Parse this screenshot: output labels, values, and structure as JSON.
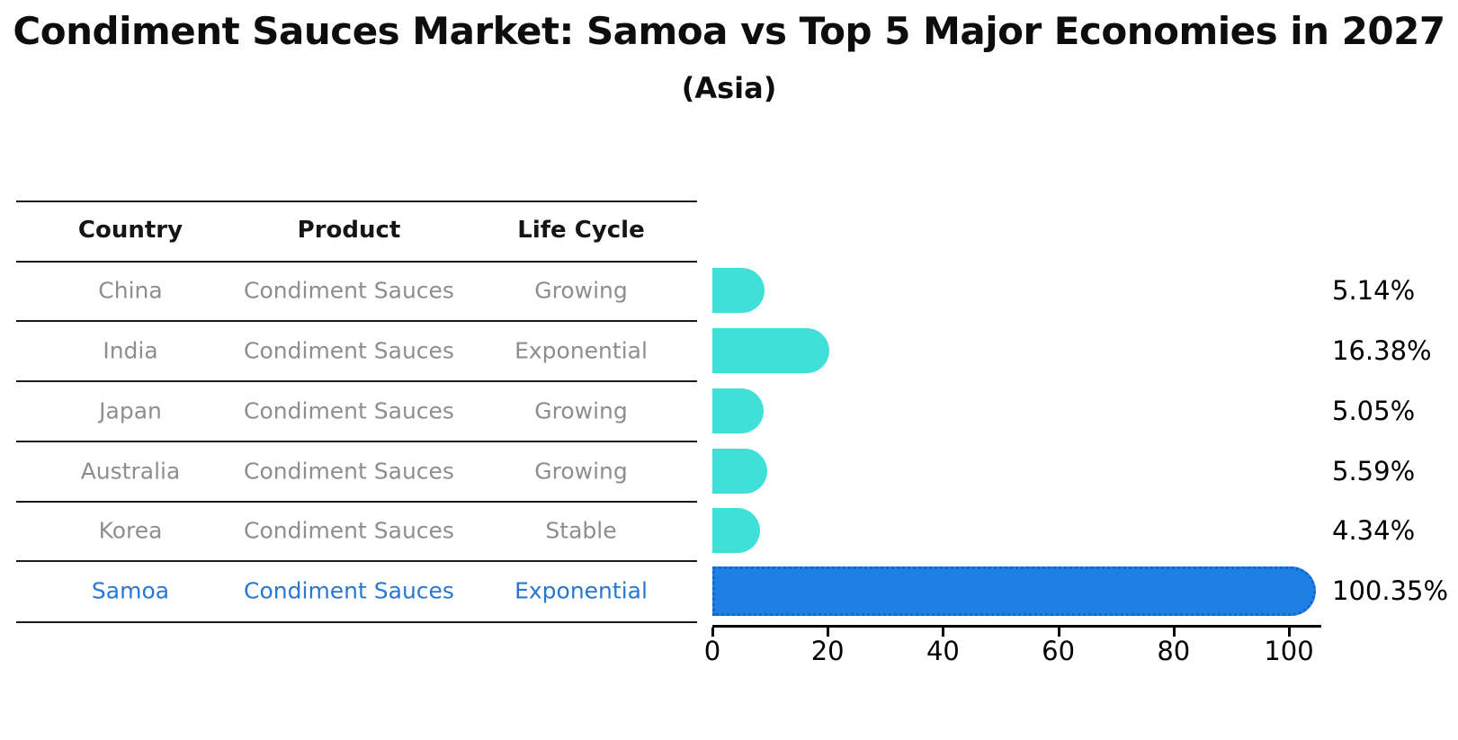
{
  "title": "Condiment Sauces Market: Samoa vs Top 5 Major Economies in 2027",
  "subtitle": "(Asia)",
  "colors": {
    "bar_default": "#40DFD8",
    "bar_highlight": "#1E7FE4",
    "bar_highlight_border": "#1565D0",
    "table_text": "#8E8E8E",
    "table_highlight_text": "#2878D2",
    "header_text": "#151515",
    "rule": "#1a1a1a",
    "axis": "#000000"
  },
  "table": {
    "headers": [
      "Country",
      "Product",
      "Life Cycle"
    ],
    "rows": [
      {
        "country": "China",
        "product": "Condiment Sauces",
        "life_cycle": "Growing",
        "highlight": false
      },
      {
        "country": "India",
        "product": "Condiment Sauces",
        "life_cycle": "Exponential",
        "highlight": false
      },
      {
        "country": "Japan",
        "product": "Condiment Sauces",
        "life_cycle": "Growing",
        "highlight": false
      },
      {
        "country": "Australia",
        "product": "Condiment Sauces",
        "life_cycle": "Growing",
        "highlight": false
      },
      {
        "country": "Korea",
        "product": "Condiment Sauces",
        "life_cycle": "Stable",
        "highlight": false
      },
      {
        "country": "Samoa",
        "product": "Condiment Sauces",
        "life_cycle": "Exponential",
        "highlight": true
      }
    ]
  },
  "chart_data": {
    "type": "bar",
    "orientation": "horizontal",
    "title": "Condiment Sauces Market: Samoa vs Top 5 Major Economies in 2027",
    "subtitle": "(Asia)",
    "categories": [
      "China",
      "India",
      "Japan",
      "Australia",
      "Korea",
      "Samoa"
    ],
    "values": [
      5.14,
      16.38,
      5.05,
      5.59,
      4.34,
      100.35
    ],
    "value_labels": [
      "5.14%",
      "16.38%",
      "5.05%",
      "5.59%",
      "4.34%",
      "100.35%"
    ],
    "xlabel": "",
    "ylabel": "",
    "xlim": [
      0,
      105.5
    ],
    "xticks": [
      0,
      20,
      40,
      60,
      80,
      100
    ],
    "grid": false,
    "legend": false,
    "highlight_index": 5
  }
}
